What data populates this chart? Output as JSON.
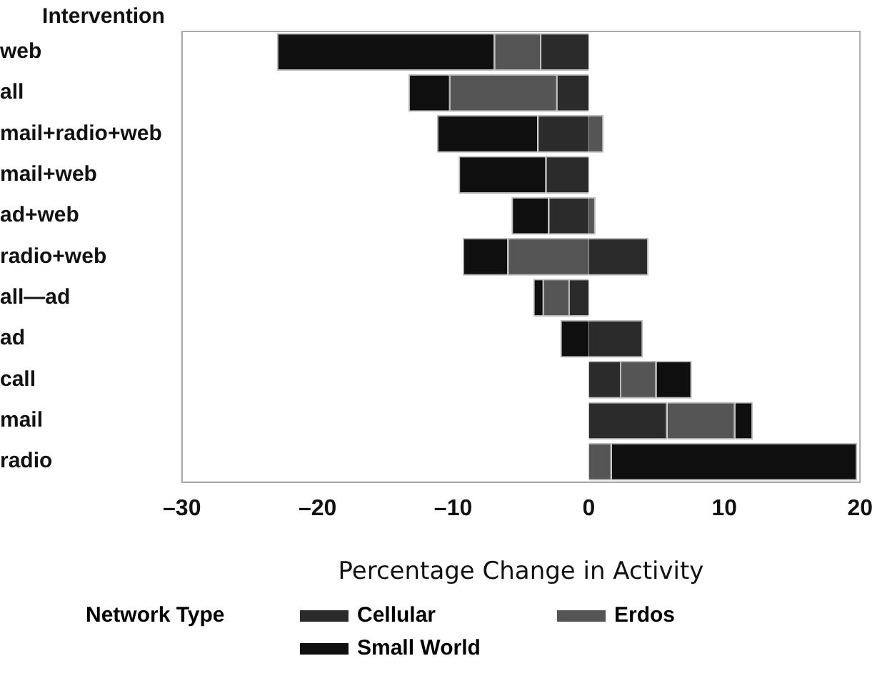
{
  "chart_data": {
    "type": "bar",
    "orientation": "horizontal",
    "stacked": true,
    "ylabel": "Intervention",
    "xlabel": "Percentage Change in Activity",
    "legend_title": "Network Type",
    "categories": [
      "web",
      "all",
      "mail+radio+web",
      "mail+web",
      "ad+web",
      "radio+web",
      "all—ad",
      "ad",
      "call",
      "mail",
      "radio"
    ],
    "series": [
      {
        "name": "Cellular",
        "color": "#2b2b2b",
        "values": [
          -3.6,
          -2.4,
          -3.8,
          -3.2,
          -3.0,
          4.4,
          -1.5,
          4.0,
          2.4,
          5.8,
          0
        ]
      },
      {
        "name": "Erdos",
        "color": "#555555",
        "values": [
          -3.4,
          -7.9,
          1.1,
          0,
          0.5,
          -6.0,
          -1.9,
          0,
          2.6,
          5.0,
          1.7
        ]
      },
      {
        "name": "Small World",
        "color": "#0f0f0f",
        "values": [
          -16,
          -3.0,
          -7.4,
          -6.4,
          -2.7,
          -3.3,
          -0.7,
          -2.1,
          2.6,
          1.3,
          18.1
        ]
      }
    ],
    "xlim": [
      -30,
      20
    ],
    "xticks": [
      {
        "value": -30,
        "label": "–30"
      },
      {
        "value": -20,
        "label": "–20"
      },
      {
        "value": -10,
        "label": "–10"
      },
      0,
      10,
      20
    ],
    "grid": false,
    "legend": "bottom"
  }
}
